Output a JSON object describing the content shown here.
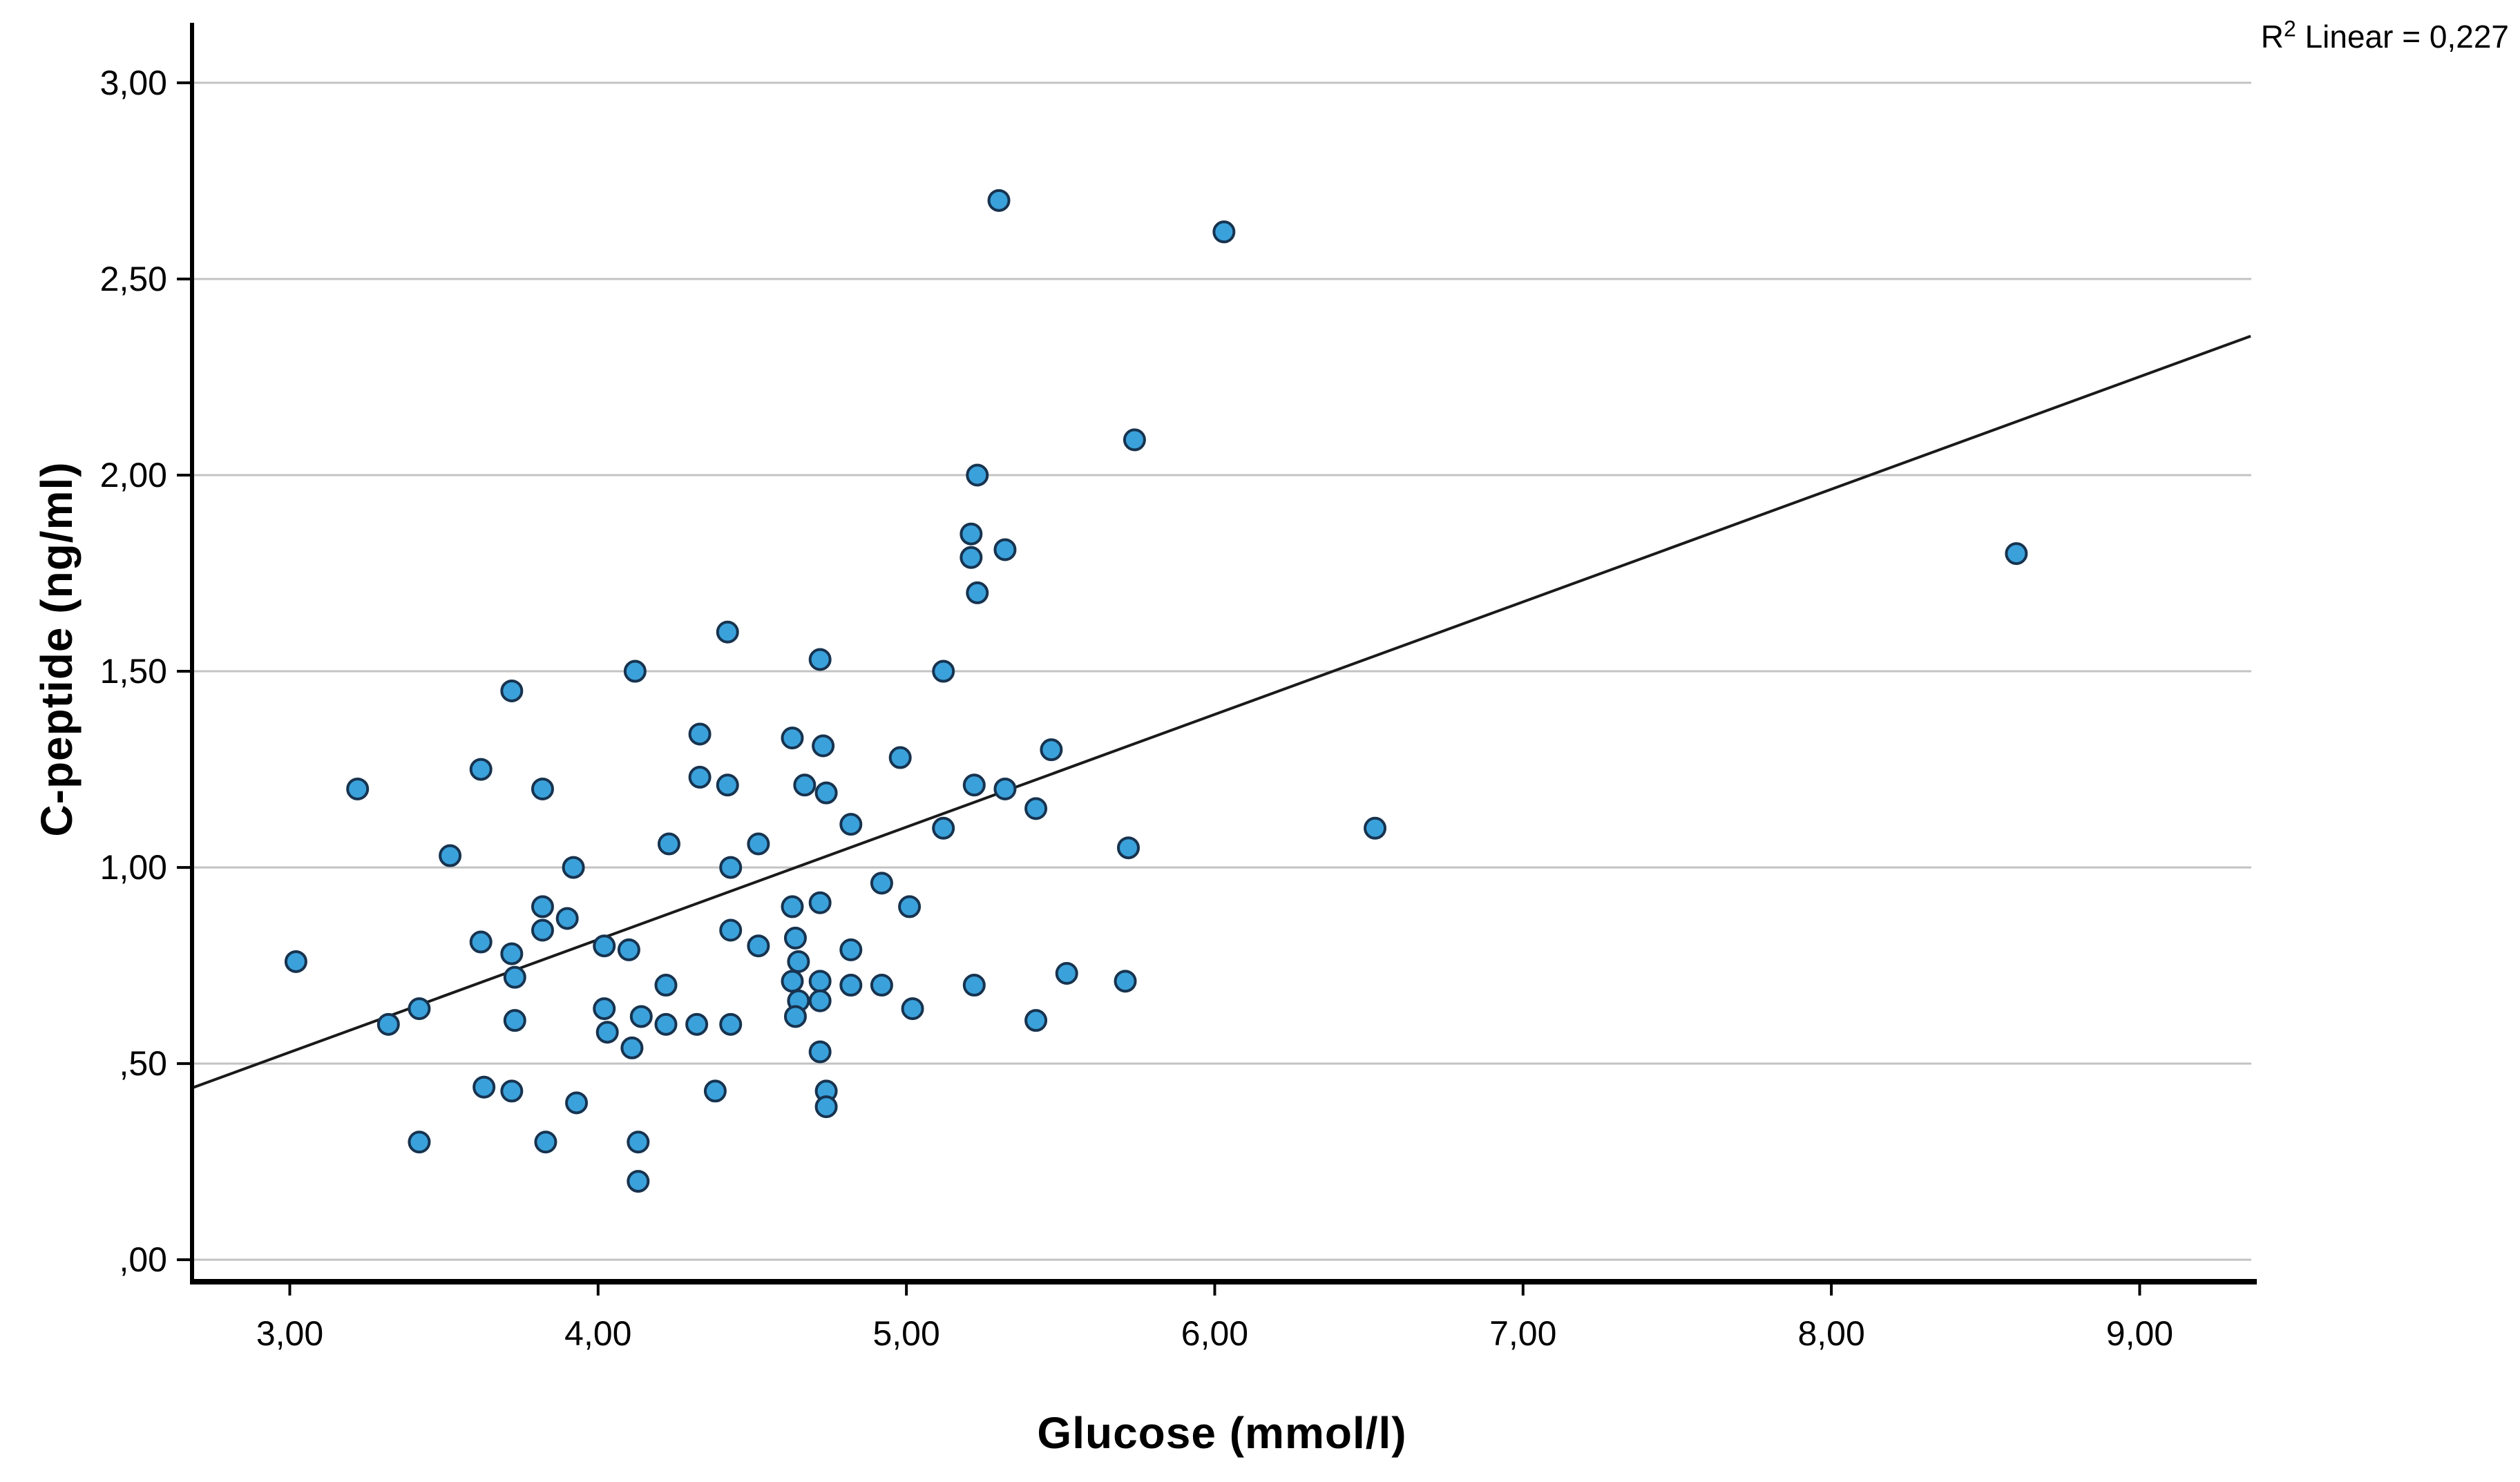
{
  "chart_data": {
    "type": "scatter",
    "title": "",
    "xlabel": "Glucose (mmol/l)",
    "ylabel": "C-peptide (ng/ml)",
    "annotation": {
      "prefix": "R",
      "sup": "2",
      "rest": " Linear = 0,227"
    },
    "r_squared": "0,227",
    "xlim": [
      2.683,
      9.362
    ],
    "ylim": [
      -0.056,
      3.153
    ],
    "grid": "horizontal-only",
    "legend": "none",
    "x_ticks": [
      {
        "v": 3,
        "label": "3,00"
      },
      {
        "v": 4,
        "label": "4,00"
      },
      {
        "v": 5,
        "label": "5,00"
      },
      {
        "v": 6,
        "label": "6,00"
      },
      {
        "v": 7,
        "label": "7,00"
      },
      {
        "v": 8,
        "label": "8,00"
      },
      {
        "v": 9,
        "label": "9,00"
      }
    ],
    "y_ticks": [
      {
        "v": 0.0,
        "label": ",00"
      },
      {
        "v": 0.5,
        "label": ",50"
      },
      {
        "v": 1.0,
        "label": "1,00"
      },
      {
        "v": 1.5,
        "label": "1,50"
      },
      {
        "v": 2.0,
        "label": "2,00"
      },
      {
        "v": 2.5,
        "label": "2,50"
      },
      {
        "v": 3.0,
        "label": "3,00"
      }
    ],
    "trendline": {
      "slope": 0.287,
      "intercept": -0.332,
      "x_start": 2.683,
      "x_end": 9.36
    },
    "point_style": {
      "fill": "#3AA1DB",
      "stroke": "#17334F",
      "radius": 14.5,
      "stroke_width": 4
    },
    "grid_color": "#C3C3C3",
    "axis_color": "#000000",
    "trend_color": "#1A1A1A",
    "points": [
      [
        5.3,
        2.7
      ],
      [
        6.03,
        2.62
      ],
      [
        5.74,
        2.09
      ],
      [
        5.23,
        2.0
      ],
      [
        5.21,
        1.85
      ],
      [
        5.21,
        1.79
      ],
      [
        5.32,
        1.81
      ],
      [
        5.23,
        1.7
      ],
      [
        8.6,
        1.8
      ],
      [
        4.42,
        1.6
      ],
      [
        4.72,
        1.53
      ],
      [
        4.12,
        1.5
      ],
      [
        5.12,
        1.5
      ],
      [
        3.72,
        1.45
      ],
      [
        4.33,
        1.34
      ],
      [
        4.63,
        1.33
      ],
      [
        4.73,
        1.31
      ],
      [
        4.98,
        1.28
      ],
      [
        5.47,
        1.3
      ],
      [
        3.62,
        1.25
      ],
      [
        3.22,
        1.2
      ],
      [
        3.82,
        1.2
      ],
      [
        4.33,
        1.23
      ],
      [
        4.42,
        1.21
      ],
      [
        4.67,
        1.21
      ],
      [
        4.74,
        1.19
      ],
      [
        5.22,
        1.21
      ],
      [
        5.32,
        1.2
      ],
      [
        5.42,
        1.15
      ],
      [
        4.82,
        1.11
      ],
      [
        5.12,
        1.1
      ],
      [
        5.72,
        1.05
      ],
      [
        6.52,
        1.1
      ],
      [
        3.52,
        1.03
      ],
      [
        3.92,
        1.0
      ],
      [
        4.23,
        1.06
      ],
      [
        4.43,
        1.0
      ],
      [
        4.52,
        1.06
      ],
      [
        4.92,
        0.96
      ],
      [
        4.72,
        0.91
      ],
      [
        5.01,
        0.9
      ],
      [
        3.82,
        0.9
      ],
      [
        3.9,
        0.87
      ],
      [
        3.82,
        0.84
      ],
      [
        4.43,
        0.84
      ],
      [
        4.52,
        0.8
      ],
      [
        4.82,
        0.79
      ],
      [
        4.02,
        0.8
      ],
      [
        4.1,
        0.79
      ],
      [
        3.62,
        0.81
      ],
      [
        3.02,
        0.76
      ],
      [
        3.72,
        0.78
      ],
      [
        3.73,
        0.72
      ],
      [
        4.22,
        0.7
      ],
      [
        4.63,
        0.9
      ],
      [
        4.64,
        0.82
      ],
      [
        4.65,
        0.76
      ],
      [
        4.63,
        0.71
      ],
      [
        4.65,
        0.66
      ],
      [
        4.64,
        0.62
      ],
      [
        4.72,
        0.71
      ],
      [
        4.72,
        0.66
      ],
      [
        4.82,
        0.7
      ],
      [
        4.92,
        0.7
      ],
      [
        5.22,
        0.7
      ],
      [
        5.52,
        0.73
      ],
      [
        5.71,
        0.71
      ],
      [
        5.02,
        0.64
      ],
      [
        5.42,
        0.61
      ],
      [
        3.32,
        0.6
      ],
      [
        3.42,
        0.64
      ],
      [
        3.73,
        0.61
      ],
      [
        4.02,
        0.64
      ],
      [
        4.03,
        0.58
      ],
      [
        4.14,
        0.62
      ],
      [
        4.11,
        0.54
      ],
      [
        4.22,
        0.6
      ],
      [
        4.32,
        0.6
      ],
      [
        4.43,
        0.6
      ],
      [
        4.72,
        0.53
      ],
      [
        4.74,
        0.43
      ],
      [
        4.74,
        0.39
      ],
      [
        4.38,
        0.43
      ],
      [
        3.63,
        0.44
      ],
      [
        3.72,
        0.43
      ],
      [
        3.93,
        0.4
      ],
      [
        3.42,
        0.3
      ],
      [
        3.83,
        0.3
      ],
      [
        4.13,
        0.3
      ],
      [
        4.13,
        0.2
      ]
    ]
  }
}
